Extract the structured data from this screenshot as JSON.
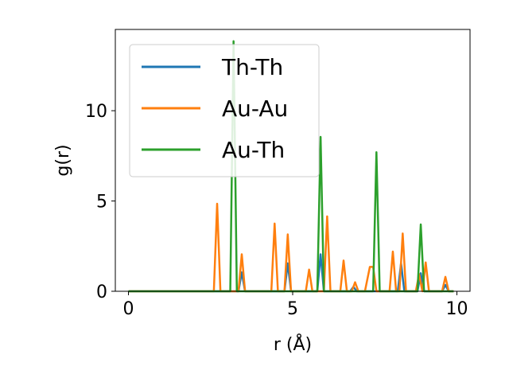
{
  "chart_data": {
    "type": "line",
    "title": "",
    "xlabel": "r (Å)",
    "ylabel": "g(r)",
    "xlim": [
      -0.4,
      10.4
    ],
    "ylim": [
      0,
      14.5
    ],
    "xticks": [
      0,
      5,
      10
    ],
    "xtick_labels": [
      "0",
      "5",
      "10"
    ],
    "yticks": [
      0,
      5,
      10
    ],
    "ytick_labels": [
      "0",
      "5",
      "10"
    ],
    "grid": false,
    "legend": {
      "placement": "upper-left"
    },
    "series": [
      {
        "name": "Th-Th",
        "color": "#1f77b4",
        "x": [
          0,
          3.35,
          3.45,
          3.55,
          4.75,
          4.85,
          4.95,
          5.75,
          5.85,
          5.95,
          6.75,
          6.85,
          6.95,
          8.2,
          8.3,
          8.4,
          8.8,
          8.9,
          9.0,
          9.55,
          9.65,
          9.75,
          9.9
        ],
        "y": [
          0,
          0,
          1.05,
          0,
          0,
          1.55,
          0,
          0,
          2.05,
          0,
          0,
          0.25,
          0,
          0,
          1.55,
          0,
          0,
          1.0,
          0,
          0,
          0.35,
          0,
          0
        ]
      },
      {
        "name": "Au-Au",
        "color": "#ff7f0e",
        "x": [
          0,
          2.6,
          2.7,
          2.8,
          3.35,
          3.45,
          3.55,
          4.35,
          4.45,
          4.55,
          4.75,
          4.85,
          4.95,
          5.4,
          5.5,
          5.6,
          5.95,
          6.05,
          6.15,
          6.45,
          6.55,
          6.65,
          6.8,
          6.9,
          7.0,
          7.2,
          7.35,
          7.45,
          7.55,
          7.95,
          8.05,
          8.15,
          8.25,
          8.35,
          8.45,
          8.75,
          8.85,
          8.95,
          9.05,
          9.15,
          9.55,
          9.65,
          9.75,
          9.9
        ],
        "y": [
          0,
          0,
          4.85,
          0,
          0,
          2.05,
          0,
          0,
          3.75,
          0,
          0,
          3.15,
          0,
          0,
          1.2,
          0,
          0,
          4.15,
          0,
          0,
          1.7,
          0,
          0,
          0.5,
          0,
          0,
          1.35,
          1.35,
          0,
          0,
          2.2,
          0,
          0,
          3.2,
          0,
          0,
          0.95,
          0,
          1.6,
          0,
          0,
          0.8,
          0,
          0
        ]
      },
      {
        "name": "Au-Th",
        "color": "#2ca02c",
        "x": [
          0,
          3.1,
          3.2,
          3.3,
          5.75,
          5.85,
          5.95,
          7.45,
          7.55,
          7.65,
          8.8,
          8.9,
          9.0,
          9.9
        ],
        "y": [
          0,
          0,
          13.85,
          0,
          0,
          8.55,
          0,
          0,
          7.7,
          0,
          0,
          3.7,
          0,
          0
        ]
      }
    ]
  }
}
